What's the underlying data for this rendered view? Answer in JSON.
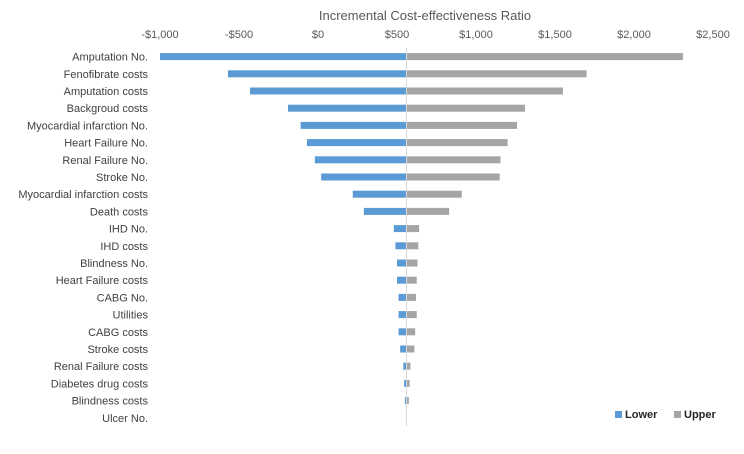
{
  "chart_data": {
    "type": "bar",
    "orientation": "horizontal",
    "subtype": "tornado",
    "title": "Incremental Cost-effectiveness Ratio",
    "xlabel": "",
    "ylabel": "",
    "xlim": [
      -1000,
      2500
    ],
    "base_value": 560,
    "x_tick_values": [
      -1000,
      -500,
      0,
      500,
      1000,
      1500,
      2000,
      2500
    ],
    "x_tick_labels": [
      "-$1,000",
      "-$500",
      "$0",
      "$500",
      "$1,000",
      "$1,500",
      "$2,000",
      "$2,500"
    ],
    "axis_position": "top",
    "legend_position": "bottom-right",
    "categories": [
      "Amputation No.",
      "Fenofibrate costs",
      "Amputation costs",
      "Backgroud costs",
      "Myocardial infarction No.",
      "Heart Failure No.",
      "Renal Failure No.",
      "Stroke No.",
      "Myocardial infarction  costs",
      "Death costs",
      "IHD No.",
      "IHD  costs",
      "Blindness No.",
      "Heart Failure  costs",
      "CABG No.",
      "Utilities",
      "CABG costs",
      "Stroke  costs",
      "Renal Failure  costs",
      "Diabetes drug costs",
      "Blindness  costs",
      "Ulcer No."
    ],
    "series": [
      {
        "name": "Lower",
        "color": "#5b9bd5",
        "values": [
          -1000,
          -570,
          -430,
          -190,
          -110,
          -70,
          -20,
          20,
          220,
          290,
          480,
          490,
          500,
          500,
          510,
          510,
          510,
          520,
          540,
          545,
          550,
          560
        ]
      },
      {
        "name": "Upper",
        "color": "#a5a5a5",
        "values": [
          2310,
          1700,
          1550,
          1310,
          1260,
          1200,
          1155,
          1150,
          910,
          830,
          640,
          635,
          630,
          625,
          620,
          625,
          615,
          610,
          585,
          580,
          575,
          560
        ]
      }
    ]
  }
}
